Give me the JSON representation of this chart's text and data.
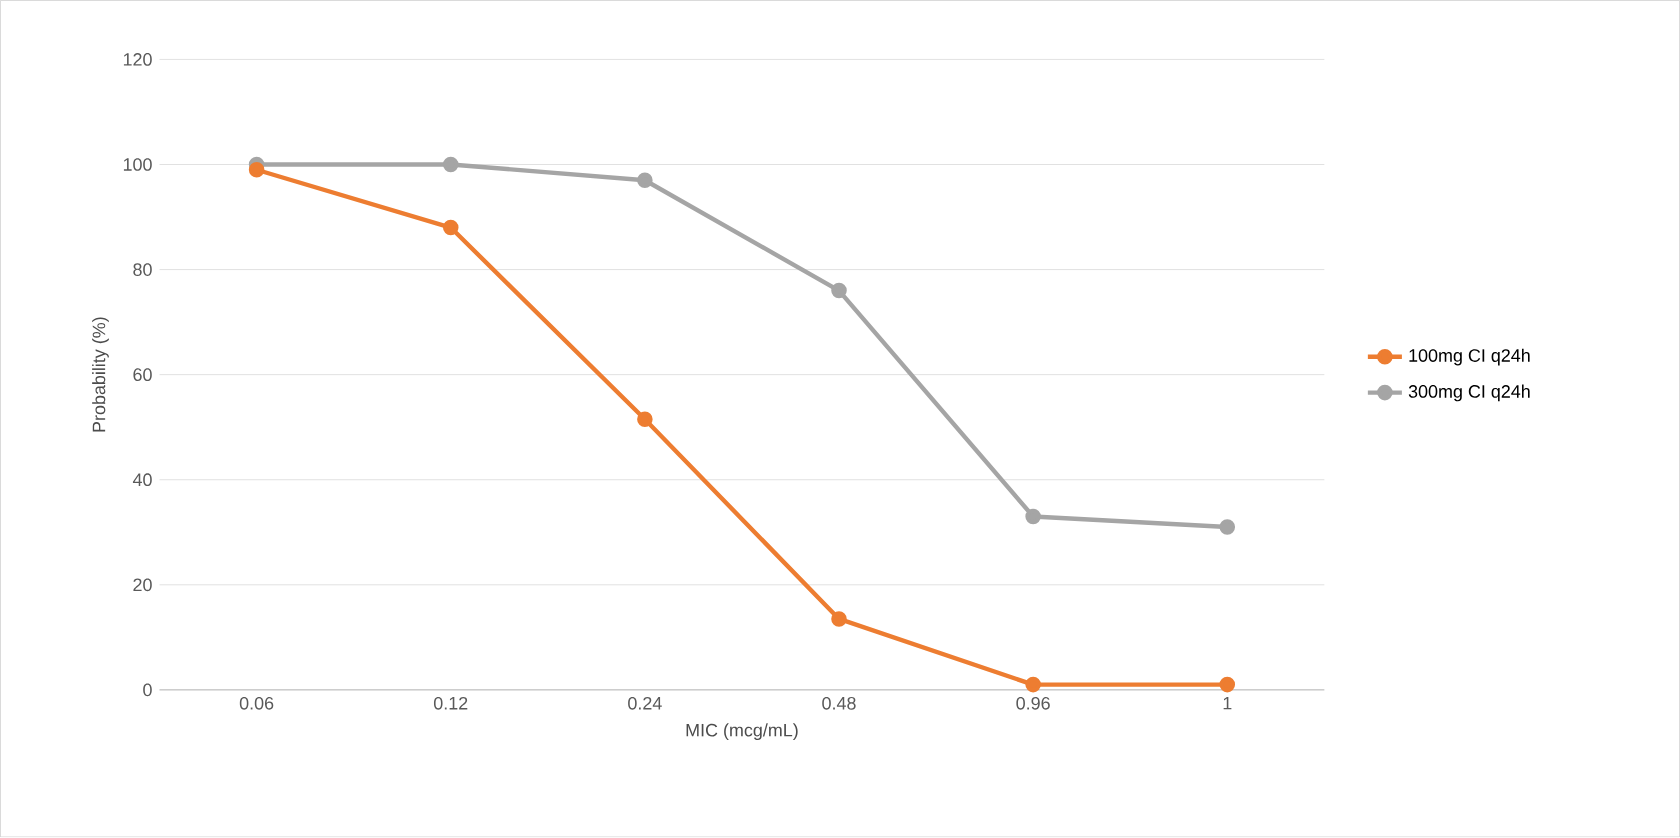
{
  "chart_data": {
    "type": "line",
    "xlabel": "MIC (mcg/mL)",
    "ylabel": "Probability (%)",
    "categories": [
      "0.06",
      "0.12",
      "0.24",
      "0.48",
      "0.96",
      "1"
    ],
    "series": [
      {
        "name": "100mg CI q24h",
        "color": "#ed7d31",
        "values": [
          99,
          88,
          51.5,
          13.5,
          1,
          1
        ]
      },
      {
        "name": "300mg CI q24h",
        "color": "#a5a5a5",
        "values": [
          100,
          100,
          97,
          76,
          33,
          31
        ]
      }
    ],
    "ylim": [
      0,
      120
    ],
    "yticks": [
      0,
      20,
      40,
      60,
      80,
      100,
      120
    ],
    "grid": "y",
    "legend": "right",
    "marker": "circle",
    "line_style": "solid"
  }
}
